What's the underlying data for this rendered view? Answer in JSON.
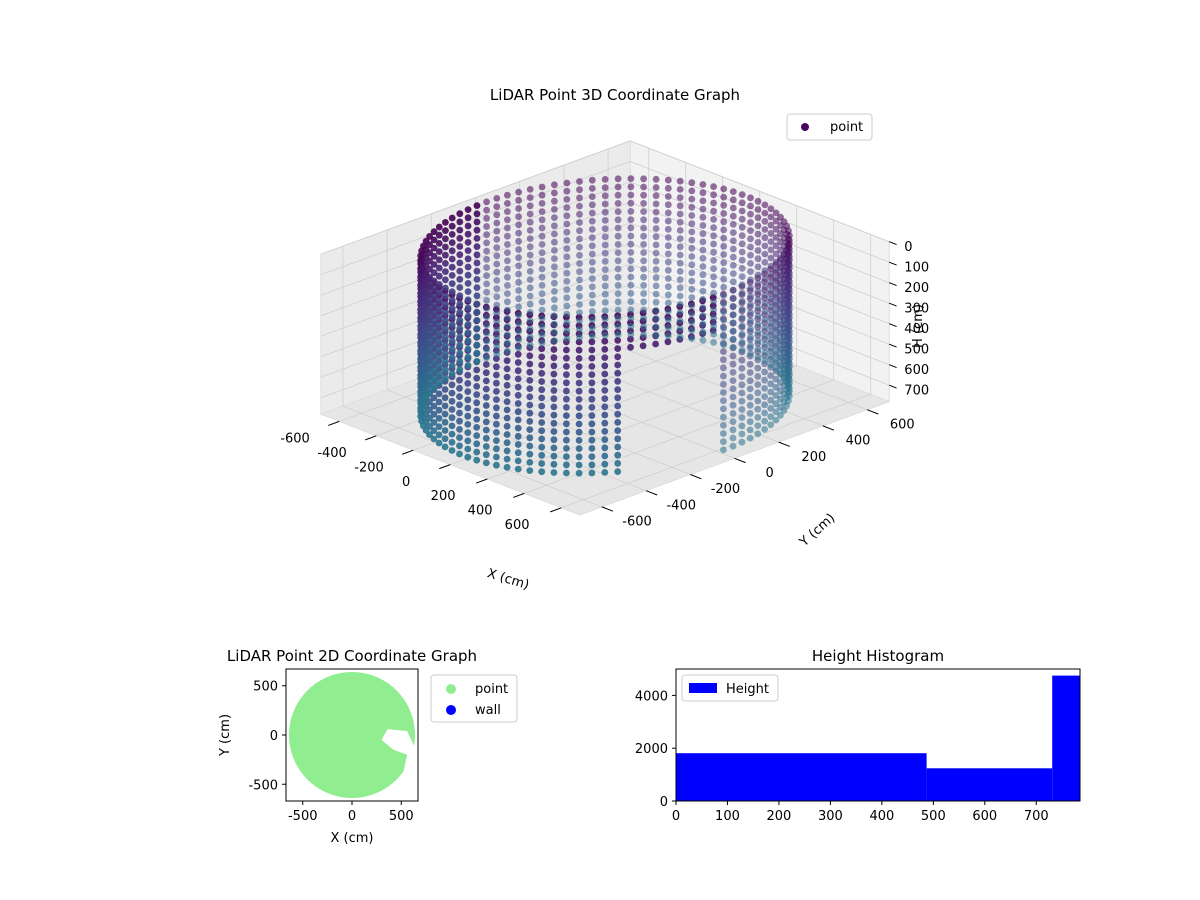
{
  "chart_data": [
    {
      "type": "scatter",
      "title": "LiDAR Point 3D Coordinate Graph",
      "xlabel": "X (cm)",
      "ylabel": "Y (cm)",
      "zlabel": "H (cm)",
      "xlim": [
        -700,
        700
      ],
      "ylim": [
        -700,
        700
      ],
      "zlim": [
        780,
        0
      ],
      "x_ticks": [
        -600,
        -400,
        -200,
        0,
        200,
        400,
        600
      ],
      "y_ticks": [
        -600,
        -400,
        -200,
        0,
        200,
        400,
        600
      ],
      "z_ticks": [
        0,
        100,
        200,
        300,
        400,
        500,
        600,
        700
      ],
      "colormap": "viridis",
      "grid": true,
      "legend": {
        "placement": "top-right",
        "entries": [
          {
            "label": "point",
            "color": "#46085c"
          }
        ]
      },
      "shape": {
        "kind": "cylindrical wall",
        "radius": 640,
        "height": 780,
        "opening_angle_deg": [
          -35,
          -10
        ]
      },
      "series": [
        {
          "name": "point"
        }
      ]
    },
    {
      "type": "scatter",
      "title": "LiDAR Point 2D Coordinate Graph",
      "xlabel": "X (cm)",
      "ylabel": "Y (cm)",
      "xlim": [
        -670,
        670
      ],
      "ylim": [
        -670,
        670
      ],
      "x_ticks": [
        -500,
        0,
        500
      ],
      "y_ticks": [
        -500,
        0,
        500
      ],
      "legend": {
        "placement": "outside-right",
        "entries": [
          {
            "label": "point",
            "color": "#90ee90"
          },
          {
            "label": "wall",
            "color": "#0000ff"
          }
        ]
      },
      "series": [
        {
          "name": "point",
          "color": "#90ee90"
        },
        {
          "name": "wall",
          "color": "#0000ff"
        }
      ]
    },
    {
      "type": "bar",
      "title": "Height Histogram",
      "legend": {
        "placement": "top-left",
        "entries": [
          {
            "label": "Height",
            "color": "#0000ff"
          }
        ]
      },
      "bins": [
        {
          "from": 0,
          "to": 487,
          "count": 1810
        },
        {
          "from": 487,
          "to": 731,
          "count": 1240
        },
        {
          "from": 731,
          "to": 785,
          "count": 4750
        }
      ],
      "xlim": [
        0,
        785
      ],
      "ylim": [
        0,
        5000
      ],
      "x_ticks": [
        0,
        100,
        200,
        300,
        400,
        500,
        600,
        700
      ],
      "y_ticks": [
        0,
        2000,
        4000
      ],
      "series": [
        {
          "name": "Height",
          "color": "#0000ff"
        }
      ]
    }
  ]
}
